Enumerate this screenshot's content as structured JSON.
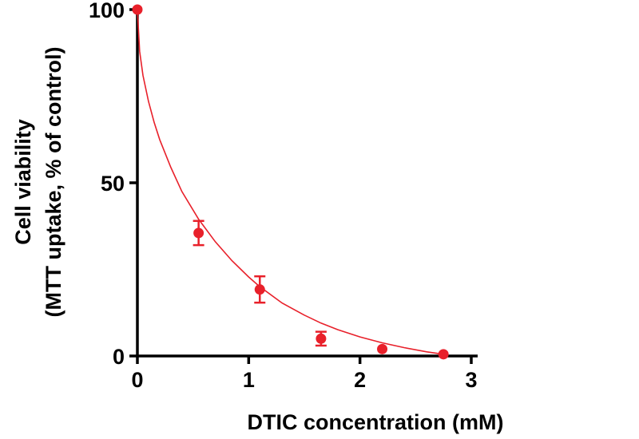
{
  "chart_data": {
    "type": "scatter",
    "title": "",
    "xlabel": "DTIC concentration (mM)",
    "ylabel_line1": "Cell viability",
    "ylabel_line2": "(MTT uptake, % of control)",
    "xlim": [
      0,
      3
    ],
    "ylim": [
      0,
      100
    ],
    "xticks": [
      0,
      1,
      2,
      3
    ],
    "yticks": [
      0,
      50,
      100
    ],
    "grid": false,
    "legend": "none",
    "series": [
      {
        "name": "Cell viability",
        "color": "#e8202a",
        "points": [
          {
            "x": 0,
            "y": 100,
            "err": 0
          },
          {
            "x": 0.55,
            "y": 35.5,
            "err": 3.5
          },
          {
            "x": 1.1,
            "y": 19.2,
            "err": 3.8
          },
          {
            "x": 1.65,
            "y": 5,
            "err": 2
          },
          {
            "x": 2.2,
            "y": 2,
            "err": 0
          },
          {
            "x": 2.75,
            "y": 0.5,
            "err": 0
          }
        ],
        "fit": {
          "description": "fitted curve",
          "x": [
            0,
            0.02,
            0.05,
            0.1,
            0.15,
            0.2,
            0.3,
            0.4,
            0.55,
            0.7,
            0.85,
            1.0,
            1.1,
            1.3,
            1.5,
            1.65,
            1.8,
            2.0,
            2.2,
            2.4,
            2.6,
            2.75
          ],
          "y": [
            100,
            88,
            81,
            73.5,
            67.5,
            62.5,
            54.5,
            47.5,
            39.5,
            33,
            27.5,
            22.8,
            20,
            15.3,
            11.8,
            9.5,
            7.6,
            5.5,
            3.8,
            2.4,
            1.2,
            0.5
          ]
        }
      }
    ]
  }
}
